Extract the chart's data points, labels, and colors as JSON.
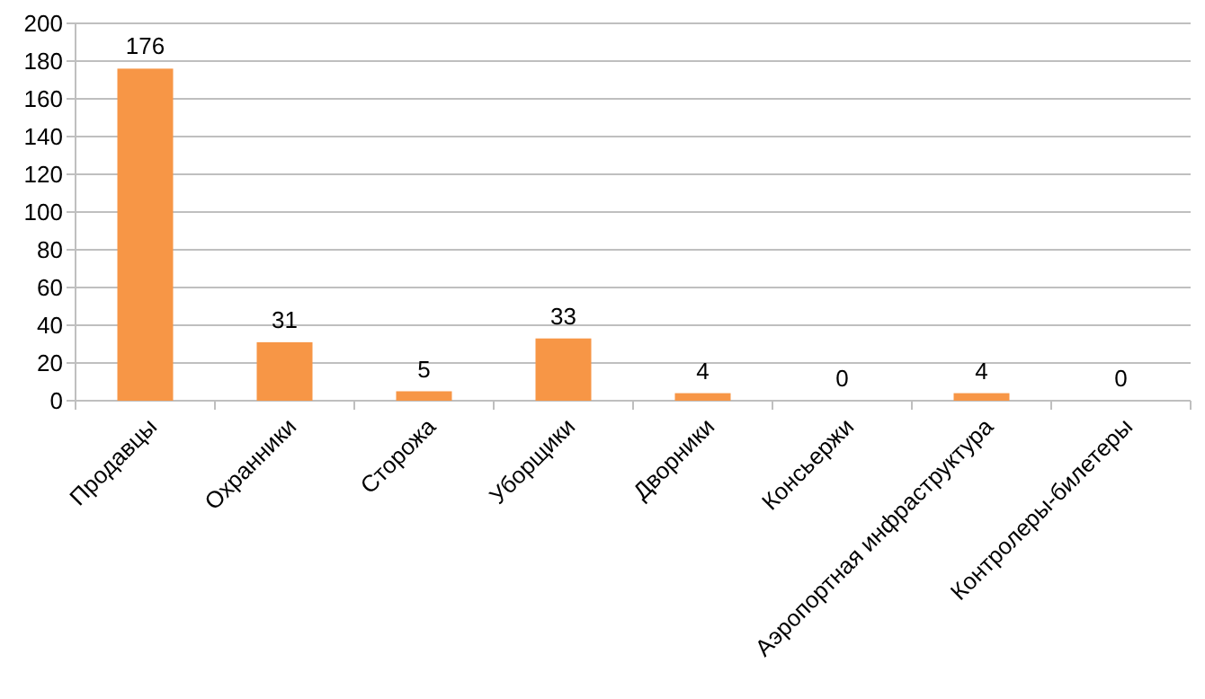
{
  "chart_data": {
    "type": "bar",
    "categories": [
      "Продавцы",
      "Охранники",
      "Сторожа",
      "Уборщики",
      "Дворники",
      "Консьержи",
      "Аэропортная инфраструктура",
      "Контролеры-билетеры"
    ],
    "values": [
      176,
      31,
      5,
      33,
      4,
      0,
      4,
      0
    ],
    "color": "#f79646",
    "ylim": [
      0,
      200
    ],
    "yticks": [
      0,
      20,
      40,
      60,
      80,
      100,
      120,
      140,
      160,
      180,
      200
    ],
    "grid": "y",
    "data_labels": true
  }
}
